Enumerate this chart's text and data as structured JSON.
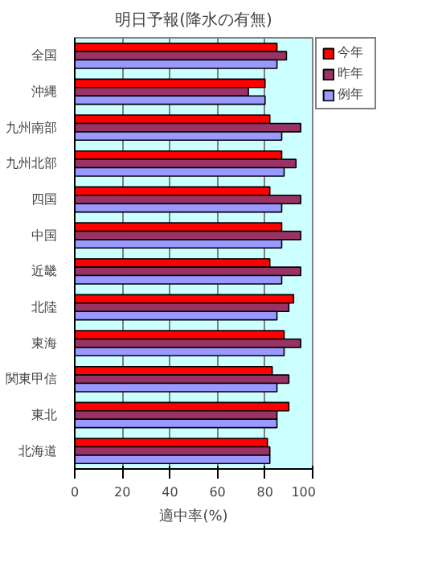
{
  "chart_data": {
    "type": "bar",
    "orientation": "horizontal",
    "title": "明日予報(降水の有無)",
    "xlabel": "適中率(%)",
    "categories": [
      "全国",
      "沖縄",
      "九州南部",
      "九州北部",
      "四国",
      "中国",
      "近畿",
      "北陸",
      "東海",
      "関東甲信",
      "東北",
      "北海道"
    ],
    "series": [
      {
        "name": "今年",
        "color": "#ff0000",
        "values": [
          85,
          80,
          82,
          87,
          82,
          87,
          82,
          92,
          88,
          83,
          90,
          81
        ]
      },
      {
        "name": "昨年",
        "color": "#993366",
        "values": [
          89,
          73,
          95,
          93,
          95,
          95,
          95,
          90,
          95,
          90,
          85,
          82
        ]
      },
      {
        "name": "例年",
        "color": "#9999ff",
        "values": [
          85,
          80,
          87,
          88,
          87,
          87,
          87,
          85,
          88,
          85,
          85,
          82
        ]
      }
    ],
    "xlim": [
      0,
      100
    ],
    "xticks": [
      0,
      20,
      40,
      60,
      80,
      100
    ],
    "grid": "x",
    "legend": "top right"
  }
}
